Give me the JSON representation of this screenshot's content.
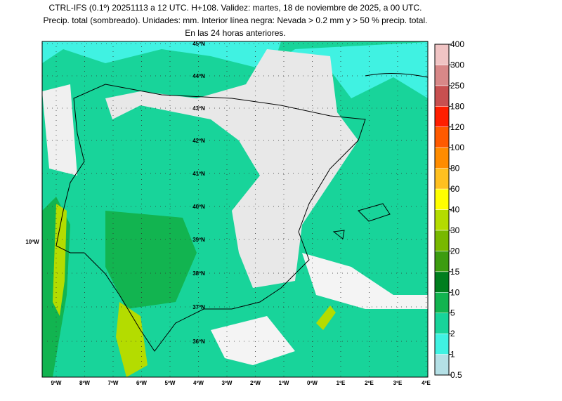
{
  "header": {
    "title_lines": [
      "CTRL-IFS (0.1º) 20251113 a 12 UTC. H+108. Validez: martes, 18 de noviembre de 2025, a 00 UTC.",
      "Precip. total (sombreado). Unidades: mm. Interior línea negra: Nevada > 0.2 mm y > 50 % precip. total.",
      "En las 24 horas anteriores."
    ]
  },
  "map": {
    "lat_labels": [
      "45ºN",
      "44ºN",
      "43ºN",
      "42ºN",
      "41ºN",
      "40ºN",
      "39ºN",
      "38ºN",
      "37ºN",
      "36ºN"
    ],
    "lon_labels": [
      "9ºW",
      "8ºW",
      "7ºW",
      "6ºW",
      "5ºW",
      "4ºW",
      "3ºW",
      "2ºW",
      "1ºW",
      "0ºW",
      "1ºE",
      "2ºE",
      "3ºE",
      "4ºE"
    ],
    "side_label": "10ºW"
  },
  "colorbar": {
    "levels": [
      0.5,
      1,
      2,
      5,
      10,
      15,
      20,
      30,
      40,
      60,
      80,
      100,
      120,
      180,
      250,
      300,
      400
    ],
    "colors": [
      "#b4e0e6",
      "#40f2e2",
      "#18d49a",
      "#12b450",
      "#007e1e",
      "#3c9c10",
      "#78b800",
      "#b4dc00",
      "#ffff00",
      "#ffc020",
      "#ff8c00",
      "#ff5a00",
      "#ff1e00",
      "#c85050",
      "#d88888",
      "#f0c4c4"
    ]
  }
}
